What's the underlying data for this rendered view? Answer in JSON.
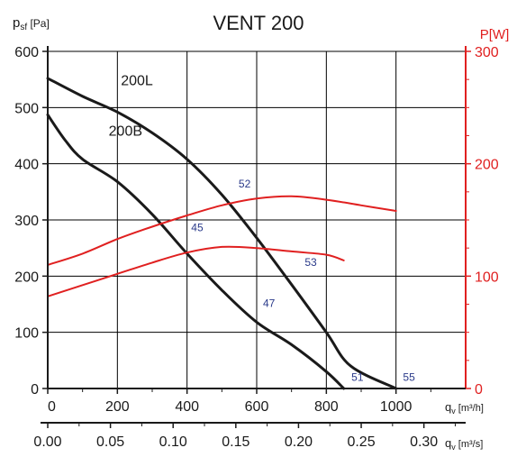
{
  "chart_data": {
    "type": "line",
    "title": "VENT 200",
    "left_axis_label": {
      "main": "p",
      "sub": "sf",
      "unit": " [Pa]"
    },
    "right_axis_label": "P[W]",
    "bottom_axis_label": {
      "main": "q",
      "sub": "v",
      "unit": " [m³/h]"
    },
    "bottom2_axis_label": {
      "main": "q",
      "sub": "v",
      "unit": " [m³/s]"
    },
    "xlim": [
      0,
      1200
    ],
    "ylim": [
      0,
      600
    ],
    "y2lim": [
      0,
      300
    ],
    "x2lim": [
      0,
      0.3333
    ],
    "grid": true,
    "x_ticks": [
      0,
      200,
      400,
      600,
      800,
      1000
    ],
    "x_tick_labels": [
      "0",
      "200",
      "400",
      "600",
      "800",
      "1000"
    ],
    "y_ticks": [
      0,
      100,
      200,
      300,
      400,
      500,
      600
    ],
    "y_tick_labels": [
      "0",
      "100",
      "200",
      "300",
      "400",
      "500",
      "600"
    ],
    "y2_ticks": [
      0,
      100,
      200,
      300
    ],
    "y2_tick_labels": [
      "0",
      "100",
      "200",
      "300"
    ],
    "x2_ticks": [
      0,
      0.05,
      0.1,
      0.15,
      0.2,
      0.25,
      0.3
    ],
    "x2_tick_labels": [
      "0.00",
      "0.05",
      "0.10",
      "0.15",
      "0.20",
      "0.25",
      "0.30"
    ],
    "series": [
      {
        "name": "200L",
        "axis": "left",
        "color": "#1a1a1a",
        "points": [
          [
            0,
            552
          ],
          [
            100,
            520
          ],
          [
            200,
            492
          ],
          [
            300,
            455
          ],
          [
            400,
            408
          ],
          [
            500,
            345
          ],
          [
            600,
            268
          ],
          [
            700,
            185
          ],
          [
            800,
            100
          ],
          [
            870,
            40
          ],
          [
            1000,
            0
          ]
        ]
      },
      {
        "name": "200B",
        "axis": "left",
        "color": "#1a1a1a",
        "points": [
          [
            0,
            487
          ],
          [
            50,
            442
          ],
          [
            100,
            408
          ],
          [
            200,
            368
          ],
          [
            300,
            310
          ],
          [
            400,
            240
          ],
          [
            500,
            175
          ],
          [
            600,
            118
          ],
          [
            700,
            78
          ],
          [
            800,
            30
          ],
          [
            850,
            0
          ]
        ]
      },
      {
        "axis": "right",
        "color": "#e02020",
        "points": [
          [
            0,
            110
          ],
          [
            100,
            120
          ],
          [
            200,
            133
          ],
          [
            300,
            144
          ],
          [
            400,
            154
          ],
          [
            500,
            163
          ],
          [
            600,
            169
          ],
          [
            700,
            171
          ],
          [
            800,
            168
          ],
          [
            900,
            163
          ],
          [
            1000,
            158
          ]
        ]
      },
      {
        "axis": "right",
        "color": "#e02020",
        "points": [
          [
            0,
            82
          ],
          [
            100,
            92
          ],
          [
            200,
            102
          ],
          [
            300,
            112
          ],
          [
            400,
            121
          ],
          [
            500,
            126
          ],
          [
            600,
            125
          ],
          [
            700,
            122
          ],
          [
            800,
            119
          ],
          [
            850,
            114
          ]
        ]
      }
    ],
    "annotations": [
      {
        "text": "200L",
        "x": 210,
        "y": 540,
        "color": "#1a1a1a"
      },
      {
        "text": "200B",
        "x": 175,
        "y": 450,
        "color": "#1a1a1a"
      },
      {
        "text": "52",
        "x": 548,
        "y": 358,
        "color": "#2a3a8a"
      },
      {
        "text": "45",
        "x": 412,
        "y": 280,
        "color": "#2a3a8a"
      },
      {
        "text": "53",
        "x": 738,
        "y": 218,
        "color": "#2a3a8a"
      },
      {
        "text": "47",
        "x": 618,
        "y": 145,
        "color": "#2a3a8a"
      },
      {
        "text": "51",
        "x": 872,
        "y": 14,
        "color": "#2a3a8a"
      },
      {
        "text": "55",
        "x": 1020,
        "y": 14,
        "color": "#2a3a8a"
      }
    ],
    "colors": {
      "axis": "#1a1a1a",
      "grid": "#000000",
      "power": "#e02020",
      "label_blue": "#2a3a8a"
    }
  }
}
